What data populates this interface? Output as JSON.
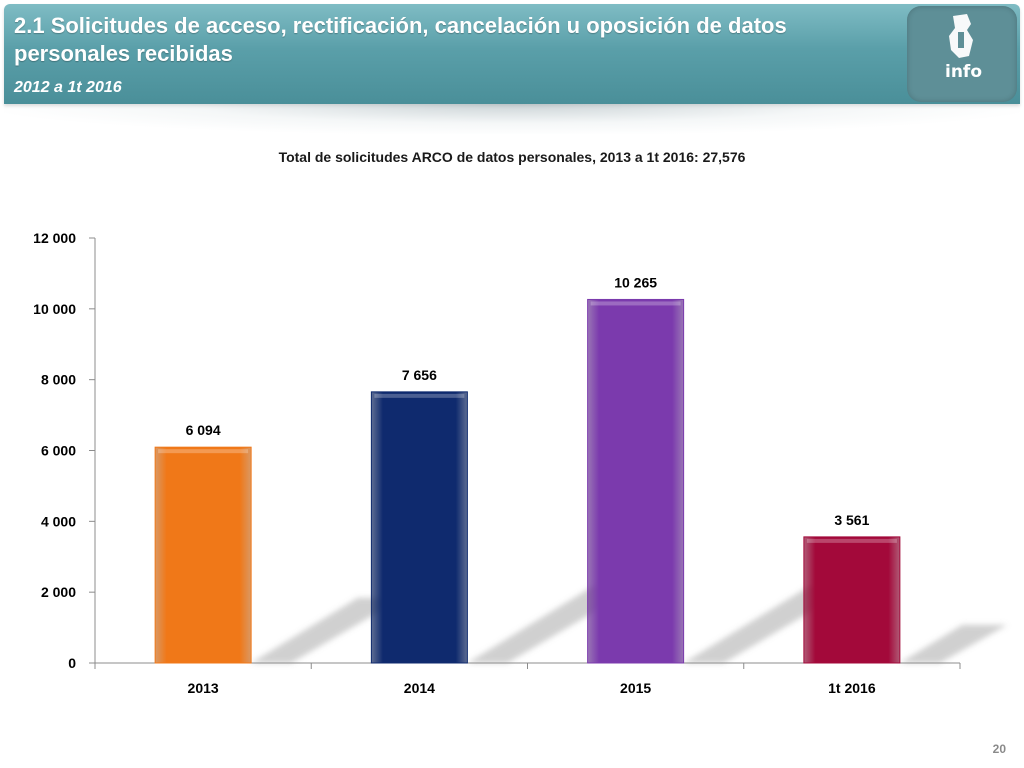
{
  "header": {
    "title": "2.1 Solicitudes de acceso, rectificación, cancelación u oposición de datos personales recibidas",
    "subtitle": "2012 a 1t 2016",
    "logo_text": "info"
  },
  "page_number": "20",
  "chart_data": {
    "type": "bar",
    "title": "Total de solicitudes ARCO de datos personales, 2013 a 1t 2016: 27,576",
    "categories": [
      "2013",
      "2014",
      "2015",
      "1t 2016"
    ],
    "values": [
      6094,
      7656,
      10265,
      3561
    ],
    "value_labels": [
      "6 094",
      "7 656",
      "10 265",
      "3 561"
    ],
    "bar_colors": [
      "#f07818",
      "#0f2a6e",
      "#7b3aad",
      "#a3093a"
    ],
    "ylim": [
      0,
      12000
    ],
    "yticks": [
      0,
      2000,
      4000,
      6000,
      8000,
      10000,
      12000
    ],
    "ytick_labels": [
      "0",
      "2 000",
      "4 000",
      "6 000",
      "8 000",
      "10 000",
      "12 000"
    ],
    "xlabel": "",
    "ylabel": "",
    "grid": false,
    "legend": false
  },
  "colors": {
    "header_teal": "#5a9fa9",
    "axis": "#8c8c8c"
  }
}
